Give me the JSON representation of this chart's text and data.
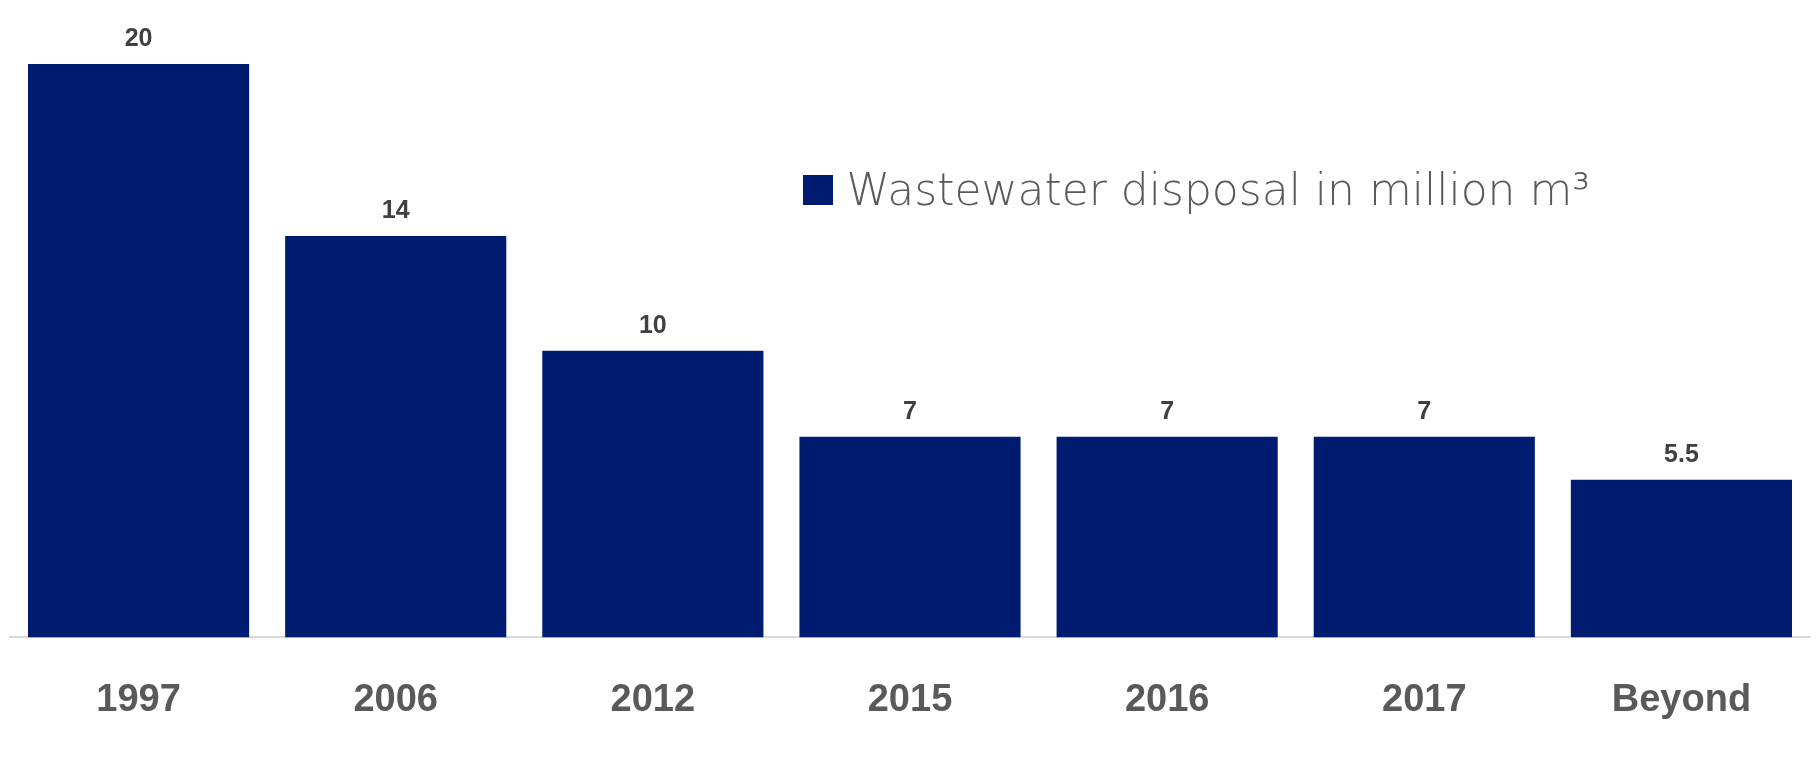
{
  "chart_data": {
    "type": "bar",
    "categories": [
      "1997",
      "2006",
      "2012",
      "2015",
      "2016",
      "2017",
      "Beyond"
    ],
    "series": [
      {
        "name": "Wastewater disposal in million m³",
        "color": "#001c71",
        "values": [
          20,
          14,
          10,
          7,
          7,
          7,
          5.5
        ]
      }
    ],
    "data_labels": true,
    "legend": "top right",
    "grid": false
  }
}
